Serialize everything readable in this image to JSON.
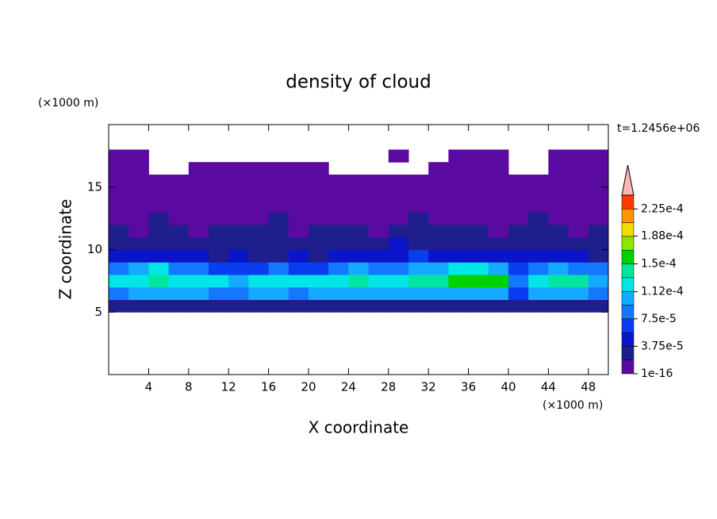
{
  "chart_data": {
    "type": "contour",
    "title": "density of cloud",
    "xlabel": "X coordinate",
    "ylabel": "Z coordinate",
    "x_unit": "(×1000 m)",
    "y_unit": "(×1000 m)",
    "annotation": "t=1.2456e+06",
    "xlim": [
      0,
      50
    ],
    "ylim": [
      0,
      20
    ],
    "xticks": [
      4,
      8,
      12,
      16,
      20,
      24,
      28,
      32,
      36,
      40,
      44,
      48
    ],
    "yticks": [
      5,
      10,
      15
    ],
    "x": [
      1,
      3,
      5,
      7,
      9,
      11,
      13,
      15,
      17,
      19,
      21,
      23,
      25,
      27,
      29,
      31,
      33,
      35,
      37,
      39,
      41,
      43,
      45,
      47,
      49
    ],
    "y": [
      5.5,
      6.5,
      7.5,
      8.5,
      9.5,
      10.5,
      11.5,
      12.5,
      13.5,
      14.5,
      15.5,
      16.5,
      17.5
    ],
    "z": [
      [
        2e-05,
        3e-05,
        2e-05,
        3e-05,
        2e-05,
        3e-05,
        2e-05,
        3e-05,
        2e-05,
        3e-05,
        2e-05,
        3e-05,
        2e-05,
        3e-05,
        2e-05,
        3e-05,
        2e-05,
        3e-05,
        2e-05,
        3e-05,
        2e-05,
        3e-05,
        2e-05,
        3e-05,
        2e-05
      ],
      [
        9e-05,
        0.0001,
        9.5e-05,
        0.000105,
        0.0001,
        9e-05,
        8e-05,
        9.5e-05,
        0.0001,
        9e-05,
        0.000105,
        0.0001,
        9.5e-05,
        0.000105,
        0.00011,
        0.0001,
        0.000105,
        0.00011,
        0.00011,
        0.000105,
        6e-05,
        0.0001,
        0.000105,
        0.00011,
        9e-05
      ],
      [
        0.00012,
        0.000125,
        0.000135,
        0.00012,
        0.000115,
        0.000125,
        0.00011,
        0.00012,
        0.00013,
        0.000115,
        0.00012,
        0.00013,
        0.000135,
        0.000125,
        0.00013,
        0.00014,
        0.000145,
        0.00015,
        0.000155,
        0.00016,
        9e-05,
        0.00013,
        0.00014,
        0.000135,
        0.00011
      ],
      [
        8e-05,
        0.0001,
        0.00012,
        9e-05,
        8e-05,
        7e-05,
        6e-05,
        7e-05,
        8e-05,
        7e-05,
        6e-05,
        9e-05,
        0.0001,
        8e-05,
        9e-05,
        0.000105,
        0.00011,
        0.000115,
        0.00012,
        0.00011,
        7e-05,
        8e-05,
        0.000105,
        9e-05,
        8e-05
      ],
      [
        4e-05,
        5e-05,
        4e-05,
        4.5e-05,
        4e-05,
        3.5e-05,
        4e-05,
        3e-05,
        3.5e-05,
        4e-05,
        3.5e-05,
        4e-05,
        4.5e-05,
        5e-05,
        5.5e-05,
        6e-05,
        5e-05,
        5.5e-05,
        5e-05,
        4.5e-05,
        4e-05,
        4.5e-05,
        5e-05,
        4e-05,
        3.5e-05
      ],
      [
        3e-05,
        2.5e-05,
        3e-05,
        2.5e-05,
        2e-05,
        2.5e-05,
        3e-05,
        2.5e-05,
        2e-05,
        3e-05,
        2.5e-05,
        3e-05,
        2.5e-05,
        3e-05,
        4e-05,
        3.5e-05,
        3e-05,
        2.5e-05,
        3e-05,
        3.5e-05,
        3e-05,
        2.5e-05,
        3e-05,
        2.5e-05,
        2e-05
      ],
      [
        2e-05,
        1.5e-05,
        2e-05,
        2e-05,
        1.5e-05,
        2e-05,
        2e-05,
        2.5e-05,
        2e-05,
        1.5e-05,
        2e-05,
        2e-05,
        2e-05,
        1.5e-05,
        2e-05,
        2e-05,
        2.5e-05,
        2e-05,
        2e-05,
        1.5e-05,
        2e-05,
        2e-05,
        2e-05,
        1.5e-05,
        2e-05
      ],
      [
        1e-05,
        1e-05,
        2e-05,
        1e-05,
        1e-05,
        1e-05,
        1e-05,
        1e-05,
        2e-05,
        1e-05,
        1e-05,
        1e-05,
        1e-05,
        1e-05,
        1e-05,
        2e-05,
        1e-05,
        1e-05,
        1e-05,
        1e-05,
        1e-05,
        2e-05,
        1e-05,
        1e-05,
        1e-05
      ],
      [
        5e-06,
        5e-06,
        5e-06,
        5e-06,
        5e-06,
        5e-06,
        5e-06,
        5e-06,
        5e-06,
        5e-06,
        5e-06,
        5e-06,
        5e-06,
        5e-06,
        5e-06,
        5e-06,
        5e-06,
        5e-06,
        5e-06,
        5e-06,
        5e-06,
        5e-06,
        5e-06,
        5e-06,
        5e-06
      ],
      [
        5e-06,
        5e-06,
        5e-06,
        5e-06,
        5e-06,
        5e-06,
        5e-06,
        5e-06,
        5e-06,
        5e-06,
        5e-06,
        5e-06,
        5e-06,
        5e-06,
        5e-06,
        5e-06,
        5e-06,
        5e-06,
        5e-06,
        5e-06,
        5e-06,
        5e-06,
        5e-06,
        5e-06,
        5e-06
      ],
      [
        5e-06,
        5e-06,
        5e-06,
        5e-06,
        5e-06,
        5e-06,
        5e-06,
        5e-06,
        5e-06,
        5e-06,
        5e-06,
        5e-06,
        5e-06,
        5e-06,
        5e-06,
        5e-06,
        5e-06,
        5e-06,
        5e-06,
        5e-06,
        5e-06,
        5e-06,
        5e-06,
        5e-06,
        5e-06
      ],
      [
        5e-06,
        5e-06,
        null,
        null,
        5e-06,
        5e-06,
        5e-06,
        5e-06,
        5e-06,
        5e-06,
        5e-06,
        null,
        null,
        null,
        null,
        null,
        5e-06,
        5e-06,
        5e-06,
        5e-06,
        null,
        null,
        5e-06,
        5e-06,
        5e-06
      ],
      [
        5e-06,
        5e-06,
        null,
        null,
        null,
        null,
        null,
        null,
        null,
        null,
        null,
        null,
        null,
        null,
        5e-06,
        null,
        null,
        5e-06,
        5e-06,
        5e-06,
        null,
        null,
        5e-06,
        5e-06,
        5e-06
      ]
    ],
    "levels": [
      1e-16,
      1.875e-05,
      3.75e-05,
      5.625e-05,
      7.5e-05,
      9.375e-05,
      0.0001125,
      0.00013125,
      0.00015,
      0.00016875,
      0.0001875,
      0.00020625,
      0.000225,
      0.00024375
    ],
    "colors": [
      "#5a0aa0",
      "#1e1e8c",
      "#0a14c8",
      "#0a3cf0",
      "#1478ff",
      "#14aaff",
      "#00e6e6",
      "#00e6a0",
      "#00d200",
      "#8ce600",
      "#f0dc00",
      "#ff9600",
      "#ff3c00"
    ],
    "over_color": "#ffb4b4",
    "cbar_ticks": [
      {
        "value": 1e-16,
        "label": "1e-16"
      },
      {
        "value": 3.75e-05,
        "label": "3.75e-5"
      },
      {
        "value": 7.5e-05,
        "label": "7.5e-5"
      },
      {
        "value": 0.000112,
        "label": "1.12e-4"
      },
      {
        "value": 0.00015,
        "label": "1.5e-4"
      },
      {
        "value": 0.000188,
        "label": "1.88e-4"
      },
      {
        "value": 0.000225,
        "label": "2.25e-4"
      }
    ]
  }
}
